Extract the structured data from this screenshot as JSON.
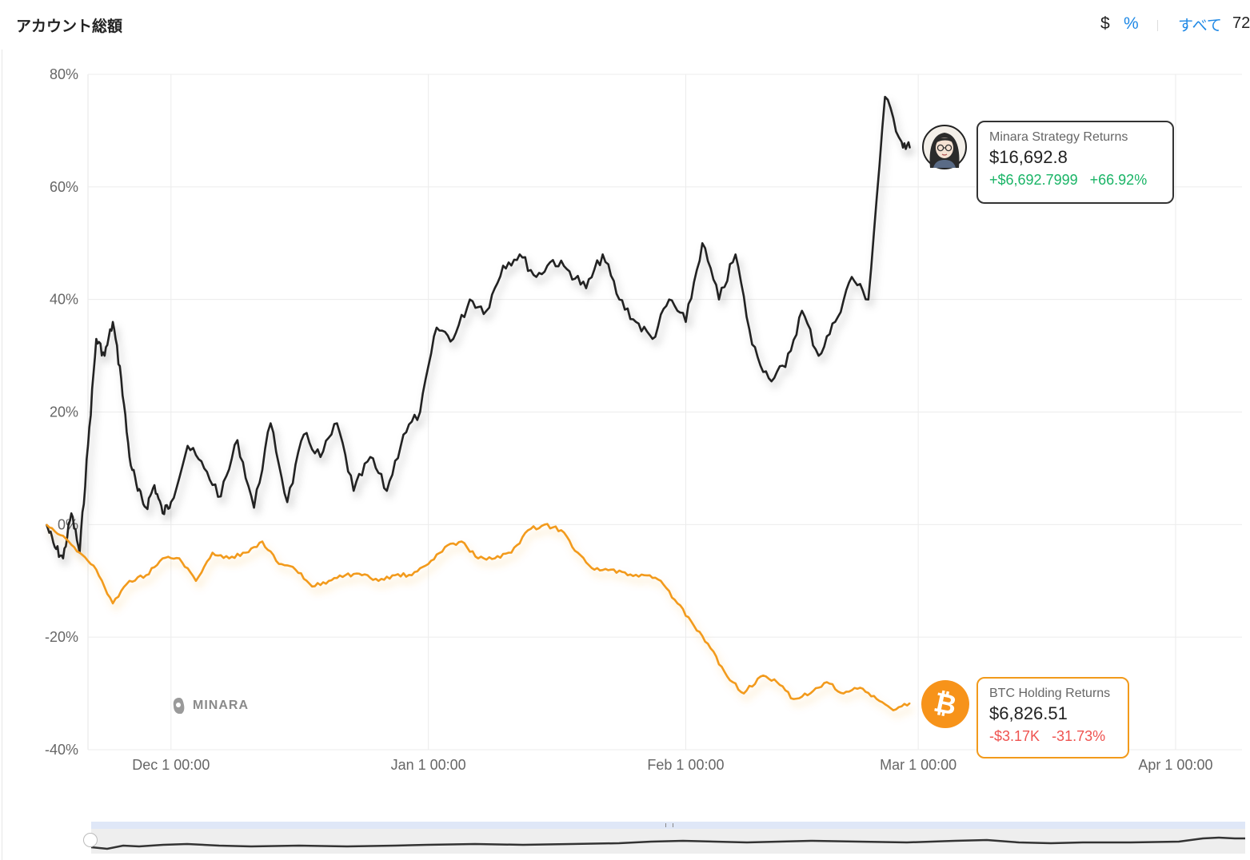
{
  "header": {
    "title": "アカウント総額",
    "unit_dollar": "$",
    "unit_percent": "%",
    "range_all": "すべて",
    "range_72": "72"
  },
  "colors": {
    "strategy": "#222222",
    "btc": "#f29a1b",
    "positive": "#19b466",
    "negative": "#ef5350",
    "accent": "#1e88e5"
  },
  "watermark": {
    "text": "MINARA"
  },
  "tooltips": {
    "strategy": {
      "label": "Minara Strategy Returns",
      "value": "$16,692.8",
      "change_abs": "+$6,692.7999",
      "change_pct": "+66.92%",
      "icon": "avatar-icon"
    },
    "btc": {
      "label": "BTC Holding Returns",
      "value": "$6,826.51",
      "change_abs": "-$3.17K",
      "change_pct": "-31.73%",
      "icon": "bitcoin-icon"
    }
  },
  "chart_data": {
    "type": "line",
    "title": "",
    "xlabel": "",
    "ylabel": "",
    "ylim": [
      -40,
      80
    ],
    "xlim": [
      "2024-11-21",
      "2025-04-09"
    ],
    "y_ticks": [
      80,
      60,
      40,
      20,
      0,
      -20,
      -40
    ],
    "y_tick_labels": [
      "80%",
      "60%",
      "40%",
      "20%",
      "0%",
      "-20%",
      "-40%"
    ],
    "x_ticks": [
      "2024-12-01",
      "2025-01-01",
      "2025-02-01",
      "2025-03-01",
      "2025-04-01"
    ],
    "x_tick_labels": [
      "Dec 1 00:00",
      "Jan 1 00:00",
      "Feb 1 00:00",
      "Mar 1 00:00",
      "Apr 1 00:00"
    ],
    "grid": true,
    "series": [
      {
        "name": "Minara Strategy Returns",
        "color": "#222222",
        "x": [
          "2024-11-16",
          "2024-11-17",
          "2024-11-18",
          "2024-11-19",
          "2024-11-20",
          "2024-11-21",
          "2024-11-22",
          "2024-11-23",
          "2024-11-24",
          "2024-11-25",
          "2024-11-26",
          "2024-11-27",
          "2024-11-28",
          "2024-11-29",
          "2024-11-30",
          "2024-12-01",
          "2024-12-03",
          "2024-12-05",
          "2024-12-07",
          "2024-12-09",
          "2024-12-11",
          "2024-12-13",
          "2024-12-15",
          "2024-12-17",
          "2024-12-19",
          "2024-12-21",
          "2024-12-23",
          "2024-12-25",
          "2024-12-27",
          "2024-12-29",
          "2024-12-31",
          "2025-01-02",
          "2025-01-04",
          "2025-01-06",
          "2025-01-08",
          "2025-01-10",
          "2025-01-12",
          "2025-01-14",
          "2025-01-16",
          "2025-01-18",
          "2025-01-20",
          "2025-01-22",
          "2025-01-24",
          "2025-01-26",
          "2025-01-28",
          "2025-01-30",
          "2025-02-01",
          "2025-02-03",
          "2025-02-05",
          "2025-02-07",
          "2025-02-09",
          "2025-02-11",
          "2025-02-13",
          "2025-02-15",
          "2025-02-17",
          "2025-02-19",
          "2025-02-21",
          "2025-02-23",
          "2025-02-25",
          "2025-02-27",
          "2025-02-28"
        ],
        "values": [
          0,
          -4,
          -6,
          2,
          -5,
          14,
          33,
          30,
          36,
          26,
          12,
          6,
          3,
          7,
          2,
          4,
          14,
          10,
          5,
          15,
          3,
          18,
          4,
          16,
          12,
          18,
          6,
          12,
          6,
          16,
          20,
          35,
          33,
          40,
          38,
          46,
          48,
          44,
          47,
          45,
          42,
          48,
          40,
          36,
          33,
          40,
          36,
          50,
          40,
          48,
          32,
          26,
          28,
          38,
          30,
          36,
          44,
          40,
          76,
          68,
          66.92
        ]
      },
      {
        "name": "BTC Holding Returns",
        "color": "#f29a1b",
        "x": [
          "2024-11-16",
          "2024-11-18",
          "2024-11-20",
          "2024-11-22",
          "2024-11-24",
          "2024-11-26",
          "2024-11-28",
          "2024-11-30",
          "2024-12-02",
          "2024-12-04",
          "2024-12-06",
          "2024-12-08",
          "2024-12-10",
          "2024-12-12",
          "2024-12-14",
          "2024-12-16",
          "2024-12-18",
          "2024-12-20",
          "2024-12-22",
          "2024-12-24",
          "2024-12-26",
          "2024-12-28",
          "2024-12-30",
          "2025-01-01",
          "2025-01-03",
          "2025-01-05",
          "2025-01-07",
          "2025-01-09",
          "2025-01-11",
          "2025-01-13",
          "2025-01-15",
          "2025-01-17",
          "2025-01-19",
          "2025-01-21",
          "2025-01-23",
          "2025-01-25",
          "2025-01-27",
          "2025-01-29",
          "2025-01-31",
          "2025-02-02",
          "2025-02-04",
          "2025-02-06",
          "2025-02-08",
          "2025-02-10",
          "2025-02-12",
          "2025-02-14",
          "2025-02-16",
          "2025-02-18",
          "2025-02-20",
          "2025-02-22",
          "2025-02-24",
          "2025-02-26",
          "2025-02-28"
        ],
        "values": [
          0,
          -2,
          -5,
          -8,
          -14,
          -10,
          -9,
          -6,
          -6,
          -10,
          -5,
          -6,
          -5,
          -3,
          -7,
          -8,
          -11,
          -10,
          -9,
          -9,
          -10,
          -9,
          -9,
          -7,
          -4,
          -3,
          -6,
          -6,
          -5,
          -1,
          0,
          -1,
          -5,
          -8,
          -8,
          -9,
          -9,
          -10,
          -14,
          -18,
          -22,
          -27,
          -30,
          -27,
          -28,
          -31,
          -30,
          -28,
          -30,
          -29,
          -31,
          -33,
          -31.73
        ]
      }
    ]
  }
}
